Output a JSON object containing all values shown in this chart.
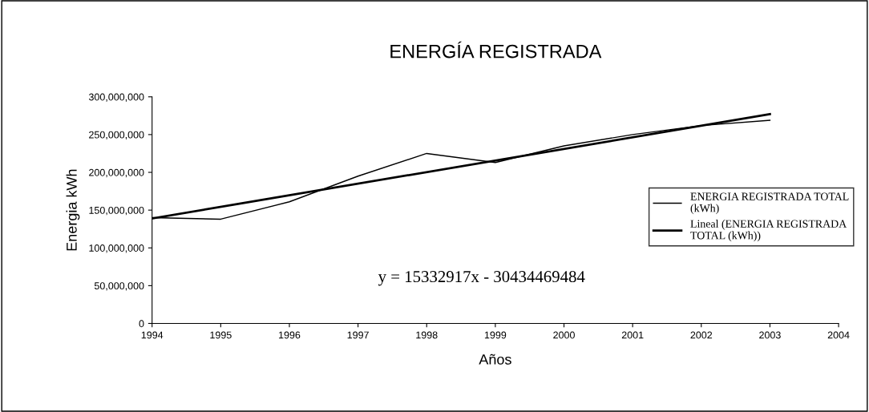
{
  "chart_data": {
    "type": "line",
    "title": "ENERGÍA REGISTRADA",
    "xlabel": "Años",
    "ylabel": "Energia kWh",
    "xlim": [
      1994,
      2004
    ],
    "xticks": [
      1994,
      1995,
      1996,
      1997,
      1998,
      1999,
      2000,
      2001,
      2002,
      2003,
      2004
    ],
    "ylim": [
      0,
      300000000
    ],
    "yticks": [
      {
        "value": 0,
        "label": "0"
      },
      {
        "value": 50000000,
        "label": "50,000,000"
      },
      {
        "value": 100000000,
        "label": "100,000,000"
      },
      {
        "value": 150000000,
        "label": "150,000,000"
      },
      {
        "value": 200000000,
        "label": "200,000,000"
      },
      {
        "value": 250000000,
        "label": "250,000,000"
      },
      {
        "value": 300000000,
        "label": "300,000,000"
      }
    ],
    "series": [
      {
        "name": "ENERGIA REGISTRADA TOTAL\n(kWh)",
        "color": "#000000",
        "x": [
          1994,
          1995,
          1996,
          1997,
          1998,
          1999,
          2000,
          2001,
          2002,
          2003
        ],
        "values": [
          140000000,
          138000000,
          161000000,
          195000000,
          225000000,
          213000000,
          235000000,
          250000000,
          262000000,
          269000000
        ]
      },
      {
        "name": "Lineal (ENERGIA REGISTRADA\nTOTAL (kWh))",
        "color": "#000000",
        "x": [
          1994,
          2003
        ],
        "values": [
          139000000,
          277000000
        ]
      }
    ],
    "annotations": [
      "y = 15332917x - 30434469484"
    ],
    "legend": "right",
    "grid": false,
    "marker": "none",
    "line_style": "solid"
  }
}
